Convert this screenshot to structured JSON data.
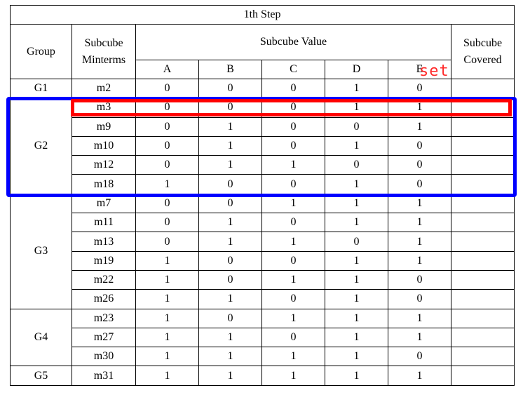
{
  "table": {
    "title": "1th Step",
    "headers": {
      "group": "Group",
      "subcube_minterms": "Subcube Minterms",
      "subcube_value": "Subcube Value",
      "subcube_covered": "Subcube Covered",
      "vars": [
        "A",
        "B",
        "C",
        "D",
        "E"
      ]
    },
    "groups": [
      {
        "label": "G1",
        "rows": [
          {
            "minterm": "m2",
            "values": [
              "0",
              "0",
              "0",
              "1",
              "0"
            ]
          }
        ]
      },
      {
        "label": "G2",
        "rows": [
          {
            "minterm": "m3",
            "values": [
              "0",
              "0",
              "0",
              "1",
              "1"
            ]
          },
          {
            "minterm": "m9",
            "values": [
              "0",
              "1",
              "0",
              "0",
              "1"
            ]
          },
          {
            "minterm": "m10",
            "values": [
              "0",
              "1",
              "0",
              "1",
              "0"
            ]
          },
          {
            "minterm": "m12",
            "values": [
              "0",
              "1",
              "1",
              "0",
              "0"
            ]
          },
          {
            "minterm": "m18",
            "values": [
              "1",
              "0",
              "0",
              "1",
              "0"
            ]
          }
        ]
      },
      {
        "label": "G3",
        "rows": [
          {
            "minterm": "m7",
            "values": [
              "0",
              "0",
              "1",
              "1",
              "1"
            ]
          },
          {
            "minterm": "m11",
            "values": [
              "0",
              "1",
              "0",
              "1",
              "1"
            ]
          },
          {
            "minterm": "m13",
            "values": [
              "0",
              "1",
              "1",
              "0",
              "1"
            ]
          },
          {
            "minterm": "m19",
            "values": [
              "1",
              "0",
              "0",
              "1",
              "1"
            ]
          },
          {
            "minterm": "m22",
            "values": [
              "1",
              "0",
              "1",
              "1",
              "0"
            ]
          },
          {
            "minterm": "m26",
            "values": [
              "1",
              "1",
              "0",
              "1",
              "0"
            ]
          }
        ]
      },
      {
        "label": "G4",
        "rows": [
          {
            "minterm": "m23",
            "values": [
              "1",
              "0",
              "1",
              "1",
              "1"
            ]
          },
          {
            "minterm": "m27",
            "values": [
              "1",
              "1",
              "0",
              "1",
              "1"
            ]
          },
          {
            "minterm": "m30",
            "values": [
              "1",
              "1",
              "1",
              "1",
              "0"
            ]
          }
        ]
      },
      {
        "label": "G5",
        "rows": [
          {
            "minterm": "m31",
            "values": [
              "1",
              "1",
              "1",
              "1",
              "1"
            ]
          }
        ]
      }
    ]
  },
  "annotations": {
    "set_label": "set",
    "highlight_row_color": "#ff0000",
    "highlight_group_color": "#0000ff"
  }
}
